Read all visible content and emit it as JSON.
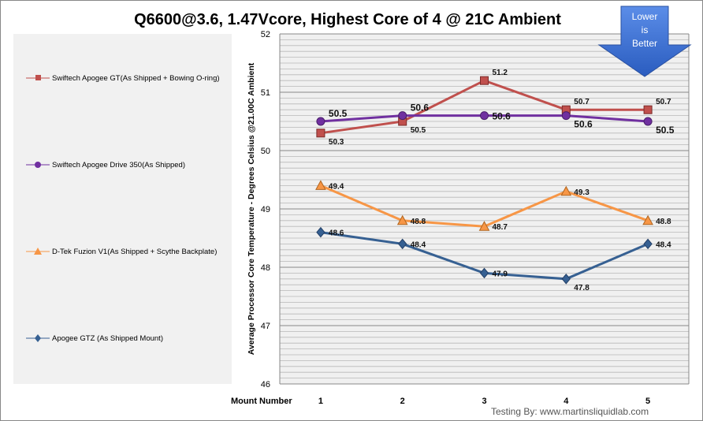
{
  "chart_data": {
    "type": "line",
    "title": "Q6600@3.6, 1.47Vcore, Highest Core of 4 @ 21C Ambient",
    "xlabel": "Mount Number",
    "ylabel": "Average Processor Core Temperature - Degrees Celsius @21.00C Ambient",
    "categories": [
      "1",
      "2",
      "3",
      "4",
      "5"
    ],
    "ylim": [
      46,
      52
    ],
    "yticks": [
      "46",
      "47",
      "48",
      "49",
      "50",
      "51",
      "52"
    ],
    "grid": "horizontal major every 1, minor every 0.1",
    "legend": "left",
    "series": [
      {
        "name": "Swiftech Apogee GT(As Shipped + Bowing O-ring)",
        "marker": "square",
        "color": "#c0504d",
        "values": [
          50.3,
          50.5,
          51.2,
          50.7,
          50.7
        ],
        "labels": [
          "50.3",
          "50.5",
          "51.2",
          "50.7",
          "50.7"
        ]
      },
      {
        "name": "Swiftech Apogee Drive 350(As Shipped)",
        "marker": "circle",
        "color": "#7030a0",
        "values": [
          50.5,
          50.6,
          50.6,
          50.6,
          50.5
        ],
        "labels": [
          "50.5",
          "50.6",
          "50.6",
          "50.6",
          "50.5"
        ]
      },
      {
        "name": "D-Tek Fuzion V1(As Shipped + Scythe Backplate)",
        "marker": "triangle",
        "color": "#f79646",
        "values": [
          49.4,
          48.8,
          48.7,
          49.3,
          48.8
        ],
        "labels": [
          "49.4",
          "48.8",
          "48.7",
          "49.3",
          "48.8"
        ]
      },
      {
        "name": "Apogee GTZ (As Shipped Mount)",
        "marker": "diamond",
        "color": "#366092",
        "values": [
          48.6,
          48.4,
          47.9,
          47.8,
          48.4
        ],
        "labels": [
          "48.6",
          "48.4",
          "47.9",
          "47.8",
          "48.4"
        ]
      }
    ]
  },
  "badge": {
    "line1": "Lower",
    "line2": "is",
    "line3": "Better",
    "color": "#3b6fd1"
  },
  "credit": "Testing By: www.martinsliquidlab.com"
}
